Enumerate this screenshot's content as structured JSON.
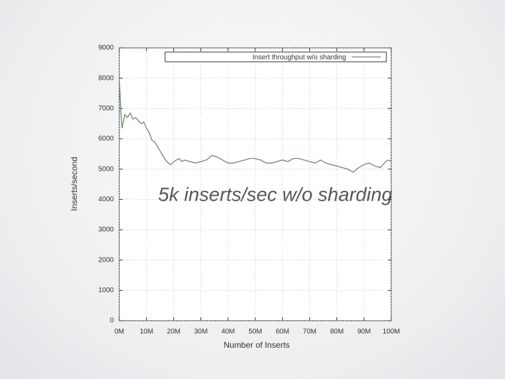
{
  "chart_data": {
    "type": "line",
    "x_label": "Number of Inserts",
    "y_label": "Inserts/second",
    "annotation": "5k inserts/sec w/o sharding",
    "xlim": [
      0,
      100
    ],
    "ylim": [
      0,
      9000
    ],
    "xticks": [
      {
        "value": 0,
        "label": "0M"
      },
      {
        "value": 10,
        "label": "10M"
      },
      {
        "value": 20,
        "label": "20M"
      },
      {
        "value": 30,
        "label": "30M"
      },
      {
        "value": 40,
        "label": "40M"
      },
      {
        "value": 50,
        "label": "50M"
      },
      {
        "value": 60,
        "label": "60M"
      },
      {
        "value": 70,
        "label": "70M"
      },
      {
        "value": 80,
        "label": "80M"
      },
      {
        "value": 90,
        "label": "90M"
      },
      {
        "value": 100,
        "label": "100M"
      }
    ],
    "yticks": [
      0,
      1000,
      2000,
      3000,
      4000,
      5000,
      6000,
      7000,
      8000,
      9000
    ],
    "grid": true,
    "legend": "top-right",
    "x": [
      0,
      0.5,
      1,
      2,
      3,
      4,
      5,
      6,
      7,
      8,
      9,
      10,
      11,
      12,
      13,
      14,
      15,
      16,
      17,
      18,
      19,
      20,
      21,
      22,
      23,
      24,
      26,
      28,
      30,
      32,
      34,
      36,
      38,
      40,
      42,
      44,
      46,
      48,
      50,
      52,
      54,
      56,
      58,
      60,
      62,
      64,
      66,
      68,
      70,
      72,
      74,
      76,
      78,
      80,
      82,
      84,
      86,
      88,
      90,
      92,
      94,
      96,
      98,
      99,
      100
    ],
    "series": [
      {
        "name": "Insert throughput w/o sharding",
        "color": "#6b8a6a",
        "values": [
          8000,
          7000,
          6350,
          6800,
          6700,
          6850,
          6650,
          6700,
          6600,
          6500,
          6550,
          6350,
          6200,
          5950,
          5900,
          5750,
          5600,
          5450,
          5300,
          5200,
          5150,
          5250,
          5300,
          5350,
          5250,
          5300,
          5250,
          5200,
          5250,
          5300,
          5450,
          5400,
          5300,
          5200,
          5200,
          5250,
          5300,
          5350,
          5350,
          5300,
          5200,
          5200,
          5250,
          5300,
          5250,
          5350,
          5350,
          5300,
          5250,
          5200,
          5300,
          5200,
          5150,
          5100,
          5050,
          5000,
          4900,
          5050,
          5150,
          5200,
          5100,
          5050,
          5250,
          5300,
          5250
        ]
      }
    ]
  }
}
